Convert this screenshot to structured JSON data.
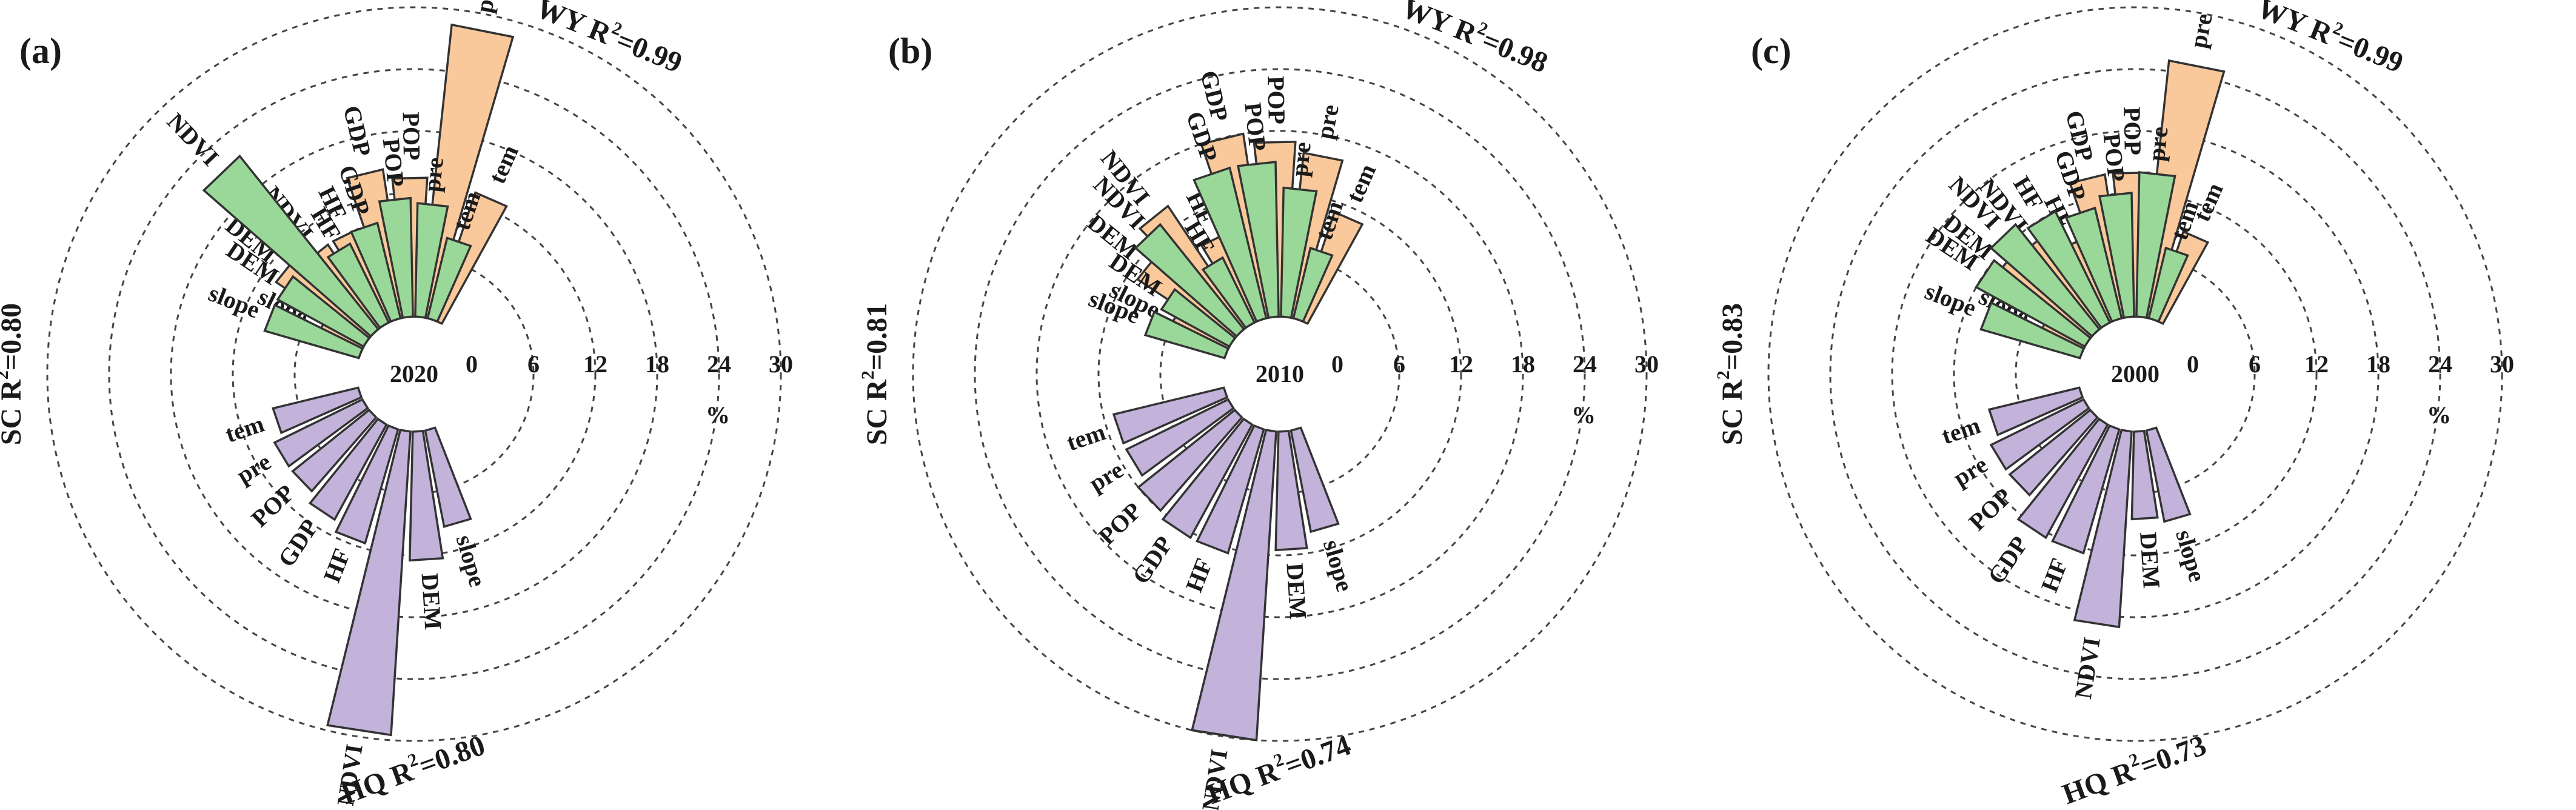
{
  "chart_data": [
    {
      "type": "radial-bar",
      "panel_label": "(a)",
      "center_label": "2020",
      "radial_axis": {
        "ticks": [
          "0",
          "6",
          "12",
          "18",
          "24",
          "30"
        ],
        "unit": "%",
        "max": 30
      },
      "colors": {
        "WY": "#fac99b",
        "HQ": "#c3b2da",
        "SC": "#9ad89a"
      },
      "groups": [
        {
          "key": "WY",
          "title": "WY",
          "r2_label": "R²=0.99",
          "categories": [
            "slope",
            "DEM",
            "NDVI",
            "HF",
            "GDP",
            "POP",
            "pre",
            "tem"
          ],
          "values": [
            4.5,
            10.5,
            9.5,
            9.5,
            14.5,
            13.5,
            28.5,
            13
          ]
        },
        {
          "key": "HQ",
          "title": "HQ",
          "r2_label": "R²=0.80",
          "categories": [
            "slope",
            "DEM",
            "NDVI",
            "HF",
            "GDP",
            "POP",
            "pre",
            "tem"
          ],
          "values": [
            9.5,
            12.5,
            29.5,
            11.5,
            10.5,
            9.5,
            9.5,
            8.5
          ]
        },
        {
          "key": "SC",
          "title": "SC",
          "r2_label": "R²=0.80",
          "categories": [
            "slope",
            "DEM",
            "NDVI",
            "HF",
            "GDP",
            "POP",
            "pre",
            "tem"
          ],
          "values": [
            9.5,
            9.5,
            21.5,
            8.5,
            9.5,
            11.5,
            11,
            8
          ]
        }
      ]
    },
    {
      "type": "radial-bar",
      "panel_label": "(b)",
      "center_label": "2010",
      "radial_axis": {
        "ticks": [
          "0",
          "6",
          "12",
          "18",
          "24",
          "30"
        ],
        "unit": "%",
        "max": 30
      },
      "colors": {
        "WY": "#fac99b",
        "HQ": "#c3b2da",
        "SC": "#9ad89a"
      },
      "groups": [
        {
          "key": "WY",
          "title": "WY",
          "r2_label": "R²=0.98",
          "categories": [
            "slope",
            "DEM",
            "NDVI",
            "HF",
            "GDP",
            "POP",
            "pre",
            "tem"
          ],
          "values": [
            6,
            11,
            14,
            9,
            18,
            17,
            16,
            11
          ]
        },
        {
          "key": "HQ",
          "title": "HQ",
          "r2_label": "R²=0.74",
          "categories": [
            "slope",
            "DEM",
            "NDVI",
            "HF",
            "GDP",
            "POP",
            "pre",
            "tem"
          ],
          "values": [
            10,
            11.5,
            30,
            12.5,
            12.5,
            12,
            11,
            11
          ]
        },
        {
          "key": "SC",
          "title": "SC",
          "r2_label": "R²=0.81",
          "categories": [
            "slope",
            "DEM",
            "NDVI",
            "HF",
            "GDP",
            "POP",
            "pre",
            "tem"
          ],
          "values": [
            8,
            7.5,
            13,
            7,
            15,
            15,
            12.5,
            7
          ]
        }
      ]
    },
    {
      "type": "radial-bar",
      "panel_label": "(c)",
      "center_label": "2000",
      "radial_axis": {
        "ticks": [
          "0",
          "6",
          "12",
          "18",
          "24",
          "30"
        ],
        "unit": "%",
        "max": 30
      },
      "colors": {
        "WY": "#fac99b",
        "HQ": "#c3b2da",
        "SC": "#9ad89a"
      },
      "groups": [
        {
          "key": "WY",
          "title": "WY",
          "r2_label": "R²=0.99",
          "categories": [
            "slope",
            "DEM",
            "NDVI",
            "HF",
            "GDP",
            "POP",
            "pre",
            "tem"
          ],
          "values": [
            4.5,
            11,
            10.5,
            8.5,
            14,
            14,
            25,
            9
          ]
        },
        {
          "key": "HQ",
          "title": "HQ",
          "r2_label": "R²=0.73",
          "categories": [
            "slope",
            "DEM",
            "NDVI",
            "HF",
            "GDP",
            "POP",
            "pre",
            "tem"
          ],
          "values": [
            9,
            8.5,
            19,
            12.5,
            12.5,
            10,
            10,
            9
          ]
        },
        {
          "key": "SC",
          "title": "SC",
          "r2_label": "R²=0.83",
          "categories": [
            "slope",
            "DEM",
            "NDVI",
            "HF",
            "GDP",
            "POP",
            "pre",
            "tem"
          ],
          "values": [
            10,
            12,
            13,
            12,
            11,
            12,
            14,
            7
          ]
        }
      ]
    }
  ]
}
